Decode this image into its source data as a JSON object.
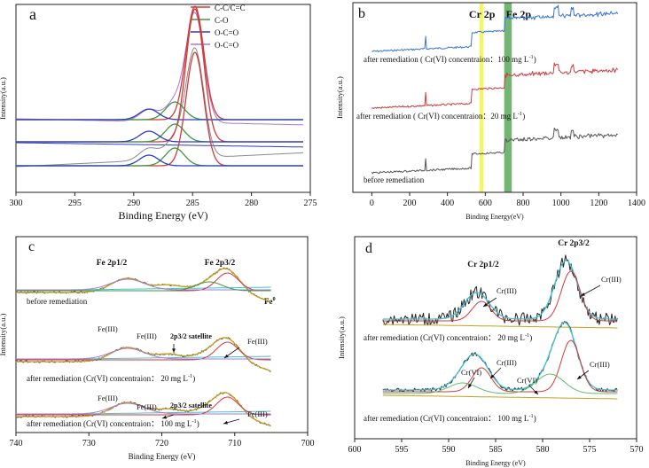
{
  "colors": {
    "black": "#333333",
    "gray": "#8a8a8a",
    "red": "#d03a3a",
    "darkred": "#a51e1e",
    "green": "#3e9a3e",
    "blue": "#2a3cc8",
    "purple": "#a57ad6",
    "cyan": "#42c2d2",
    "olive": "#c8a020",
    "brown": "#8c5a1e",
    "yellow": "#f5f542",
    "fegreen": "#5aa85a",
    "steelblue": "#3b74d4",
    "darkgray": "#555555",
    "lightgreen": "#5fbf6a"
  },
  "chart_data": [
    {
      "panel": "a",
      "type": "line",
      "xlabel": "Binding Energy (eV)",
      "ylabel": "Intensity(a.u.)",
      "xlim": [
        300,
        275
      ],
      "x_ticks": [
        "300",
        "295",
        "290",
        "285",
        "280",
        "275"
      ],
      "legend": [
        "C-C/C=C",
        "C-O",
        "O-C=O",
        "O-C=O"
      ],
      "legend_position": "top-right",
      "peaks_eV": {
        "C-C/C=C": 284.8,
        "C-O": 286.5,
        "O-C=O": 288.7
      },
      "series": [
        {
          "name": "C-C/C=C",
          "center": 284.8,
          "color": "red"
        },
        {
          "name": "C-O",
          "center": 286.5,
          "color": "green"
        },
        {
          "name": "O-C=O",
          "center": 288.7,
          "color": "blue"
        },
        {
          "name": "O-C=O",
          "center": 288.7,
          "color": "purple"
        }
      ]
    },
    {
      "panel": "b",
      "type": "line",
      "xlabel": "Binding Energy(eV)",
      "ylabel": "Intensity(a.u.)",
      "xlim": [
        -100,
        1400
      ],
      "x_ticks": [
        "0",
        "200",
        "400",
        "600",
        "800",
        "1000",
        "1200",
        "1400"
      ],
      "highlights": [
        {
          "label": "Cr 2p",
          "from": 570,
          "to": 590,
          "color": "yellow"
        },
        {
          "label": "Fe 2p",
          "from": 700,
          "to": 740,
          "color": "fegreen"
        }
      ],
      "series": [
        {
          "name": "after remediation ( Cr(VI) concentraion：100 mg L",
          "sup": "-1",
          "close": ")",
          "color": "steelblue"
        },
        {
          "name": "after remediation ( Cr(VI)  concentraion：20 mg L",
          "sup": "-1",
          "close": ")",
          "color": "red"
        },
        {
          "name": "before remediation",
          "sup": "",
          "close": "",
          "color": "darkgray"
        }
      ]
    },
    {
      "panel": "c",
      "type": "line",
      "xlabel": "Binding Energy (eV)",
      "ylabel": "Intensity(a.u.)",
      "xlim": [
        740,
        700
      ],
      "x_ticks": [
        "740",
        "730",
        "720",
        "710",
        "700"
      ],
      "peak_labels": {
        "fe2p12": "Fe 2p1/2",
        "fe2p32": "Fe 2p3/2",
        "fe0": "Fe",
        "fe0_sup": "0"
      },
      "annotations": {
        "fe3": "Fe(III)",
        "satellite": "2p3/2 satellite"
      },
      "series": [
        {
          "name": "before remediation",
          "sup": "",
          "close": ""
        },
        {
          "name": "after remediation (Cr(VI) concentraion：  20 mg L",
          "sup": "-1",
          "close": ")"
        },
        {
          "name": "after remediation (Cr(VI) concentraion：  100 mg L",
          "sup": "-1",
          "close": ")"
        }
      ]
    },
    {
      "panel": "d",
      "type": "line",
      "xlabel": "Binding Energy (eV)",
      "ylabel": "Intensity(a.u.)",
      "xlim": [
        600,
        570
      ],
      "x_ticks": [
        "600",
        "595",
        "590",
        "585",
        "580",
        "575",
        "570"
      ],
      "peak_labels": {
        "cr2p12": "Cr 2p1/2",
        "cr2p32": "Cr 2p3/2"
      },
      "annotations": {
        "cr3": "Cr(III)",
        "cr6": "Cr(VI)"
      },
      "series": [
        {
          "name": "after remediation (Cr(VI)  concentraion：  20 mg L",
          "sup": "-1",
          "close": ")"
        },
        {
          "name": "after remediation (Cr(VI) concentraion：  100 mg L",
          "sup": "-1",
          "close": ")"
        }
      ]
    }
  ]
}
